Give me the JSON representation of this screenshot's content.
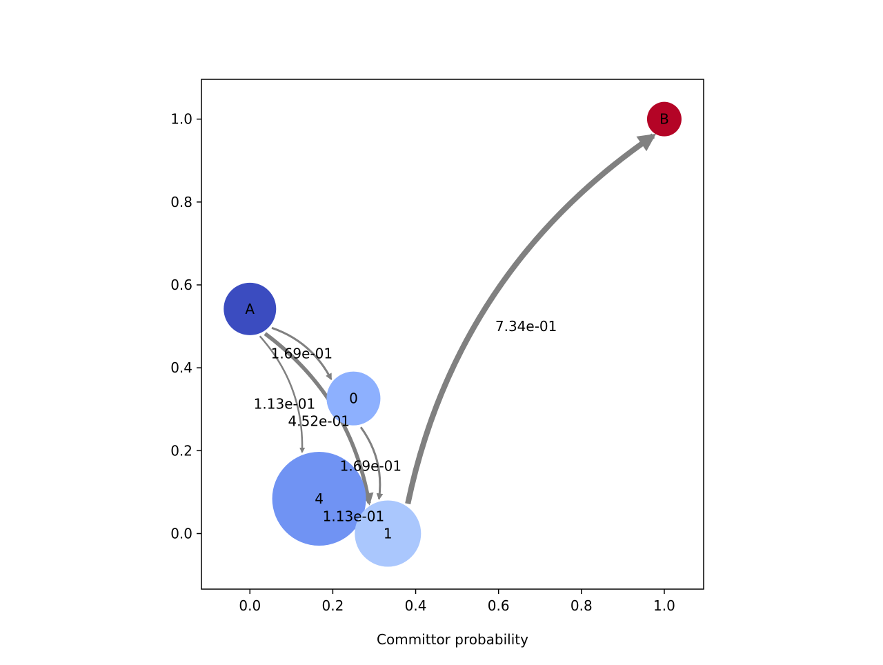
{
  "chart_data": {
    "type": "scatter",
    "title": "",
    "xlabel": "Committor probability",
    "ylabel": "",
    "xlim": [
      -0.117,
      1.095
    ],
    "ylim": [
      -0.134,
      1.096
    ],
    "xticks": [
      0.0,
      0.2,
      0.4,
      0.6,
      0.8,
      1.0
    ],
    "yticks": [
      0.0,
      0.2,
      0.4,
      0.6,
      0.8,
      1.0
    ],
    "xtick_labels": [
      "0.0",
      "0.2",
      "0.4",
      "0.6",
      "0.8",
      "1.0"
    ],
    "ytick_labels": [
      "0.0",
      "0.2",
      "0.4",
      "0.6",
      "0.8",
      "1.0"
    ],
    "grid": false,
    "nodes": [
      {
        "id": "A",
        "label": "A",
        "x": 0.0,
        "y": 0.542,
        "size": 0.38,
        "color": "#3b4cc0"
      },
      {
        "id": "0",
        "label": "0",
        "x": 0.25,
        "y": 0.326,
        "size": 0.39,
        "color": "#8db0fe"
      },
      {
        "id": "4",
        "label": "4",
        "x": 0.167,
        "y": 0.084,
        "size": 0.68,
        "color": "#7093f3"
      },
      {
        "id": "1",
        "label": "1",
        "x": 0.333,
        "y": 0.0,
        "size": 0.48,
        "color": "#aac7fd"
      },
      {
        "id": "B",
        "label": "B",
        "x": 1.0,
        "y": 1.0,
        "size": 0.25,
        "color": "#b40426"
      }
    ],
    "edges": [
      {
        "source": "A",
        "target": "0",
        "label": "1.69e-01",
        "flux": 0.169
      },
      {
        "source": "A",
        "target": "4",
        "label": "1.13e-01",
        "flux": 0.113
      },
      {
        "source": "A",
        "target": "1",
        "label": "4.52e-01",
        "flux": 0.452
      },
      {
        "source": "0",
        "target": "1",
        "label": "1.69e-01",
        "flux": 0.169
      },
      {
        "source": "4",
        "target": "1",
        "label": "1.13e-01",
        "flux": 0.113
      },
      {
        "source": "1",
        "target": "B",
        "label": "7.34e-01",
        "flux": 0.734
      }
    ],
    "edge_color": "#808080"
  }
}
